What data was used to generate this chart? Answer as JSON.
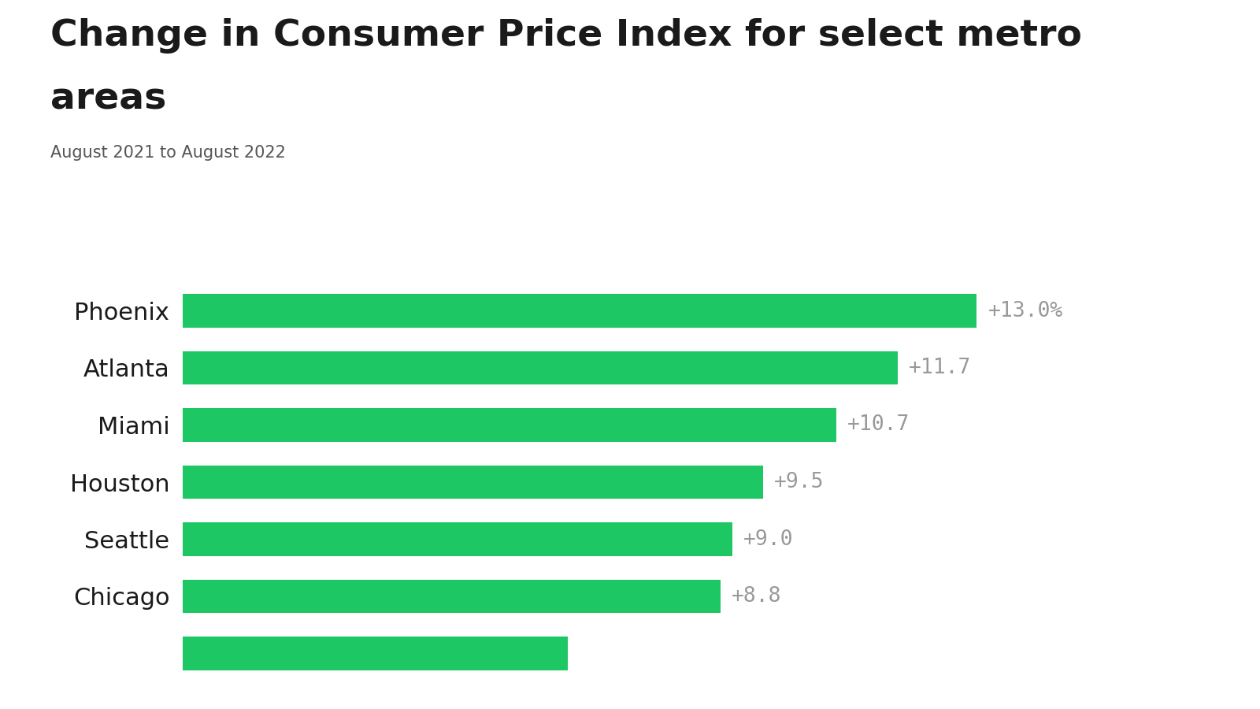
{
  "title_line1": "Change in Consumer Price Index for select metro",
  "title_line2": "areas",
  "subtitle": "August 2021 to August 2022",
  "categories": [
    "Phoenix",
    "Atlanta",
    "Miami",
    "Houston",
    "Seattle",
    "Chicago",
    ""
  ],
  "values": [
    13.0,
    11.7,
    10.7,
    9.5,
    9.0,
    8.8,
    6.3
  ],
  "labels": [
    "+13.0%",
    "+11.7",
    "+10.7",
    "+9.5",
    "+9.0",
    "+8.8",
    ""
  ],
  "bar_color": "#1DC763",
  "label_color": "#999999",
  "title_color": "#1a1a1a",
  "subtitle_color": "#555555",
  "ytick_color": "#1a1a1a",
  "background_color": "#ffffff",
  "bar_height": 0.58,
  "xlim": [
    0,
    16.5
  ],
  "title_fontsize": 34,
  "subtitle_fontsize": 15,
  "label_fontsize": 19,
  "ytick_fontsize": 22
}
